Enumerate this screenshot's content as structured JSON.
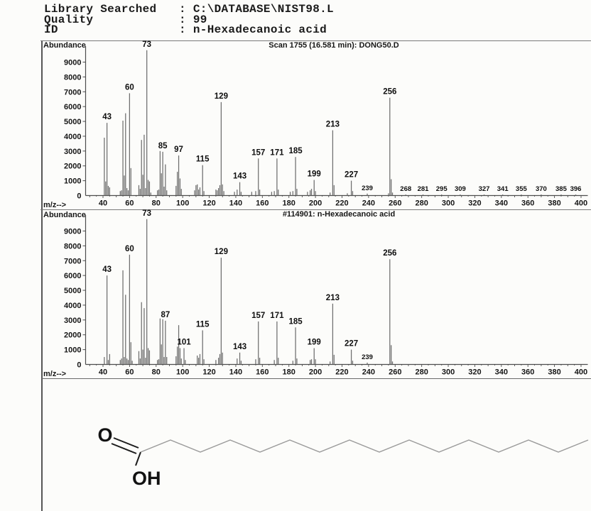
{
  "header": {
    "separator": ":",
    "rows": [
      {
        "label": "Library Searched",
        "value": "C:\\DATABASE\\NIST98.L"
      },
      {
        "label": "Quality",
        "value": "99"
      },
      {
        "label": "ID",
        "value": "n-Hexadecanoic acid"
      }
    ]
  },
  "chart_data": [
    {
      "type": "bar",
      "subtype": "mass-spectrum",
      "title": "Scan 1755 (16.581 min): DONG50.D",
      "ylabel": "Abundance",
      "xlabel": "m/z-->",
      "xlim": [
        26,
        404
      ],
      "ylim": [
        0,
        10000
      ],
      "yticks": [
        0,
        1000,
        2000,
        3000,
        4000,
        5000,
        6000,
        7000,
        8000,
        9000
      ],
      "xticks": [
        40,
        60,
        80,
        100,
        120,
        140,
        160,
        180,
        200,
        220,
        240,
        260,
        280,
        300,
        320,
        340,
        360,
        380,
        400
      ],
      "labeled_peaks": [
        43,
        60,
        73,
        85,
        97,
        115,
        129,
        143,
        157,
        171,
        185,
        199,
        213,
        227,
        239,
        256,
        268,
        281,
        295,
        309,
        327,
        341,
        355,
        370,
        385,
        396
      ],
      "peaks": [
        [
          41,
          3900
        ],
        [
          42,
          950
        ],
        [
          43,
          4900
        ],
        [
          44,
          650
        ],
        [
          45,
          550
        ],
        [
          53,
          300
        ],
        [
          54,
          350
        ],
        [
          55,
          5050
        ],
        [
          56,
          1350
        ],
        [
          57,
          5550
        ],
        [
          58,
          500
        ],
        [
          59,
          350
        ],
        [
          60,
          6900
        ],
        [
          61,
          1850
        ],
        [
          67,
          700
        ],
        [
          68,
          450
        ],
        [
          69,
          3750
        ],
        [
          70,
          1400
        ],
        [
          71,
          4100
        ],
        [
          72,
          500
        ],
        [
          73,
          9800
        ],
        [
          74,
          1050
        ],
        [
          75,
          950
        ],
        [
          76,
          200
        ],
        [
          81,
          350
        ],
        [
          82,
          400
        ],
        [
          83,
          3000
        ],
        [
          84,
          1500
        ],
        [
          85,
          2950
        ],
        [
          86,
          600
        ],
        [
          87,
          2100
        ],
        [
          88,
          350
        ],
        [
          95,
          650
        ],
        [
          96,
          1600
        ],
        [
          97,
          2700
        ],
        [
          98,
          1150
        ],
        [
          99,
          450
        ],
        [
          109,
          350
        ],
        [
          110,
          700
        ],
        [
          111,
          750
        ],
        [
          112,
          400
        ],
        [
          113,
          550
        ],
        [
          115,
          2050
        ],
        [
          116,
          300
        ],
        [
          125,
          400
        ],
        [
          126,
          350
        ],
        [
          127,
          500
        ],
        [
          128,
          700
        ],
        [
          129,
          6300
        ],
        [
          130,
          750
        ],
        [
          131,
          300
        ],
        [
          139,
          250
        ],
        [
          141,
          400
        ],
        [
          143,
          900
        ],
        [
          144,
          250
        ],
        [
          152,
          250
        ],
        [
          155,
          300
        ],
        [
          157,
          2500
        ],
        [
          158,
          400
        ],
        [
          167,
          250
        ],
        [
          169,
          300
        ],
        [
          171,
          2500
        ],
        [
          172,
          400
        ],
        [
          181,
          250
        ],
        [
          183,
          300
        ],
        [
          185,
          2600
        ],
        [
          186,
          450
        ],
        [
          194,
          250
        ],
        [
          196,
          350
        ],
        [
          197,
          450
        ],
        [
          199,
          1050
        ],
        [
          200,
          300
        ],
        [
          211,
          200
        ],
        [
          213,
          4400
        ],
        [
          214,
          700
        ],
        [
          224,
          150
        ],
        [
          227,
          1000
        ],
        [
          228,
          300
        ],
        [
          239,
          130
        ],
        [
          255,
          150
        ],
        [
          256,
          6600
        ],
        [
          257,
          1100
        ],
        [
          258,
          200
        ],
        [
          268,
          70
        ],
        [
          281,
          70
        ],
        [
          295,
          70
        ],
        [
          309,
          70
        ],
        [
          327,
          70
        ],
        [
          341,
          70
        ],
        [
          355,
          70
        ],
        [
          370,
          70
        ],
        [
          385,
          70
        ],
        [
          396,
          70
        ]
      ]
    },
    {
      "type": "bar",
      "subtype": "mass-spectrum",
      "title": "#114901: n-Hexadecanoic acid",
      "ylabel": "Abundance",
      "xlabel": "m/z-->",
      "xlim": [
        26,
        404
      ],
      "ylim": [
        0,
        10000
      ],
      "yticks": [
        0,
        1000,
        2000,
        3000,
        4000,
        5000,
        6000,
        7000,
        8000,
        9000
      ],
      "xticks": [
        40,
        60,
        80,
        100,
        120,
        140,
        160,
        180,
        200,
        220,
        240,
        260,
        280,
        300,
        320,
        340,
        360,
        380,
        400
      ],
      "labeled_peaks": [
        43,
        60,
        73,
        87,
        101,
        115,
        129,
        143,
        157,
        171,
        185,
        199,
        213,
        227,
        239,
        256
      ],
      "peaks": [
        [
          41,
          500
        ],
        [
          43,
          6000
        ],
        [
          44,
          300
        ],
        [
          45,
          700
        ],
        [
          53,
          300
        ],
        [
          54,
          400
        ],
        [
          55,
          6350
        ],
        [
          56,
          500
        ],
        [
          57,
          4700
        ],
        [
          58,
          400
        ],
        [
          59,
          300
        ],
        [
          60,
          7400
        ],
        [
          61,
          1500
        ],
        [
          62,
          250
        ],
        [
          67,
          900
        ],
        [
          68,
          400
        ],
        [
          69,
          4200
        ],
        [
          70,
          1000
        ],
        [
          71,
          3800
        ],
        [
          72,
          450
        ],
        [
          73,
          9800
        ],
        [
          74,
          1100
        ],
        [
          75,
          950
        ],
        [
          81,
          300
        ],
        [
          82,
          350
        ],
        [
          83,
          3100
        ],
        [
          84,
          1350
        ],
        [
          85,
          3050
        ],
        [
          86,
          500
        ],
        [
          87,
          2950
        ],
        [
          88,
          500
        ],
        [
          95,
          550
        ],
        [
          96,
          1200
        ],
        [
          97,
          2650
        ],
        [
          98,
          1100
        ],
        [
          99,
          400
        ],
        [
          101,
          1100
        ],
        [
          102,
          300
        ],
        [
          111,
          600
        ],
        [
          112,
          450
        ],
        [
          113,
          700
        ],
        [
          115,
          2300
        ],
        [
          116,
          350
        ],
        [
          125,
          300
        ],
        [
          127,
          450
        ],
        [
          128,
          700
        ],
        [
          129,
          7200
        ],
        [
          130,
          800
        ],
        [
          141,
          400
        ],
        [
          143,
          800
        ],
        [
          144,
          250
        ],
        [
          155,
          350
        ],
        [
          157,
          2900
        ],
        [
          158,
          450
        ],
        [
          169,
          300
        ],
        [
          171,
          2900
        ],
        [
          172,
          450
        ],
        [
          183,
          250
        ],
        [
          185,
          2500
        ],
        [
          186,
          400
        ],
        [
          196,
          300
        ],
        [
          197,
          350
        ],
        [
          199,
          1100
        ],
        [
          200,
          350
        ],
        [
          211,
          200
        ],
        [
          213,
          4100
        ],
        [
          214,
          650
        ],
        [
          227,
          1000
        ],
        [
          228,
          250
        ],
        [
          239,
          120
        ],
        [
          256,
          7100
        ],
        [
          257,
          1300
        ],
        [
          258,
          200
        ]
      ]
    }
  ],
  "structure": {
    "name": "n-Hexadecanoic acid",
    "carbonyl_atom": "O",
    "hydroxyl_group": "OH"
  }
}
